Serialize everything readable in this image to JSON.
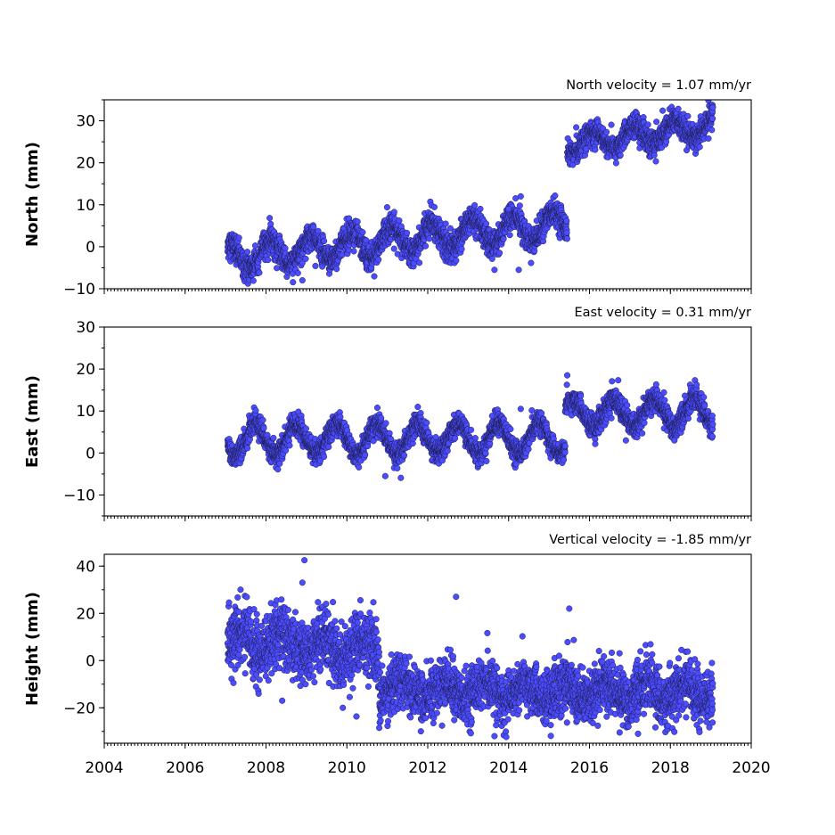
{
  "chart_data": [
    {
      "type": "scatter",
      "title": "North velocity = 1.07 mm/yr",
      "ylabel": "North (mm)",
      "xlabel": "",
      "xlim": [
        2004,
        2020
      ],
      "ylim": [
        -10,
        35
      ],
      "yticks": [
        -10,
        0,
        10,
        20,
        30
      ],
      "time_range": [
        2007.05,
        2019.05
      ],
      "outliers": [
        [
          2008.9,
          -8
        ],
        [
          2013.65,
          -5.5
        ],
        [
          2014.25,
          -5.5
        ],
        [
          2014.3,
          12
        ],
        [
          2014.0,
          9
        ]
      ],
      "segments": [
        {
          "start": 2007.05,
          "end": 2015.45,
          "offset": -2.5,
          "rate": 0.95,
          "amplitude": 3.2,
          "phase_year": 2010.1,
          "noise": 1.6
        },
        {
          "start": 2015.45,
          "end": 2019.05,
          "offset": 24.5,
          "rate": 1.2,
          "amplitude": 2.3,
          "phase_year": 2016.1,
          "noise": 1.5
        }
      ]
    },
    {
      "type": "scatter",
      "title": "East velocity = 0.31 mm/yr",
      "ylabel": "East (mm)",
      "xlabel": "",
      "xlim": [
        2004,
        2020
      ],
      "ylim": [
        -15,
        30
      ],
      "yticks": [
        -10,
        0,
        10,
        20,
        30
      ],
      "time_range": [
        2007.05,
        2019.05
      ],
      "outliers": [
        [
          2010.95,
          -5.5
        ],
        [
          2015.45,
          18.5
        ],
        [
          2014.3,
          10.5
        ],
        [
          2016.9,
          3
        ],
        [
          2018.1,
          3
        ]
      ],
      "segments": [
        {
          "start": 2007.05,
          "end": 2015.4,
          "offset": 3.2,
          "rate": 0.05,
          "amplitude": 3.6,
          "phase_year": 2007.75,
          "noise": 1.3
        },
        {
          "start": 2015.4,
          "end": 2019.05,
          "offset": 9.5,
          "rate": 0.05,
          "amplitude": 3.2,
          "phase_year": 2016.6,
          "noise": 1.4
        }
      ]
    },
    {
      "type": "scatter",
      "title": "Vertical velocity = -1.85 mm/yr",
      "ylabel": "Height (mm)",
      "xlabel": "",
      "xlim": [
        2004,
        2020
      ],
      "ylim": [
        -35,
        45
      ],
      "yticks": [
        -20,
        0,
        20,
        40
      ],
      "time_range": [
        2007.05,
        2019.05
      ],
      "outliers": [
        [
          2008.95,
          42.5
        ],
        [
          2008.9,
          33
        ],
        [
          2008.4,
          -17
        ],
        [
          2009.9,
          -20
        ],
        [
          2012.7,
          27
        ],
        [
          2015.5,
          22
        ],
        [
          2013.65,
          -32
        ],
        [
          2017.2,
          -31
        ]
      ],
      "segments": [
        {
          "start": 2007.05,
          "end": 2010.8,
          "offset": 8,
          "rate": -0.8,
          "amplitude": 4,
          "phase_year": 2007.4,
          "noise": 6.5
        },
        {
          "start": 2010.8,
          "end": 2019.05,
          "offset": -12,
          "rate": -0.2,
          "amplitude": 3.5,
          "phase_year": 2011.4,
          "noise": 5.5
        }
      ]
    }
  ],
  "x_axis": {
    "tick_values": [
      2004,
      2006,
      2008,
      2010,
      2012,
      2014,
      2016,
      2018,
      2020
    ],
    "tick_labels": [
      "2004",
      "2006",
      "2008",
      "2010",
      "2012",
      "2014",
      "2016",
      "2018",
      "2020"
    ]
  },
  "style": {
    "marker_fill": "#4b4bff",
    "marker_edge": "#1a1a40"
  }
}
